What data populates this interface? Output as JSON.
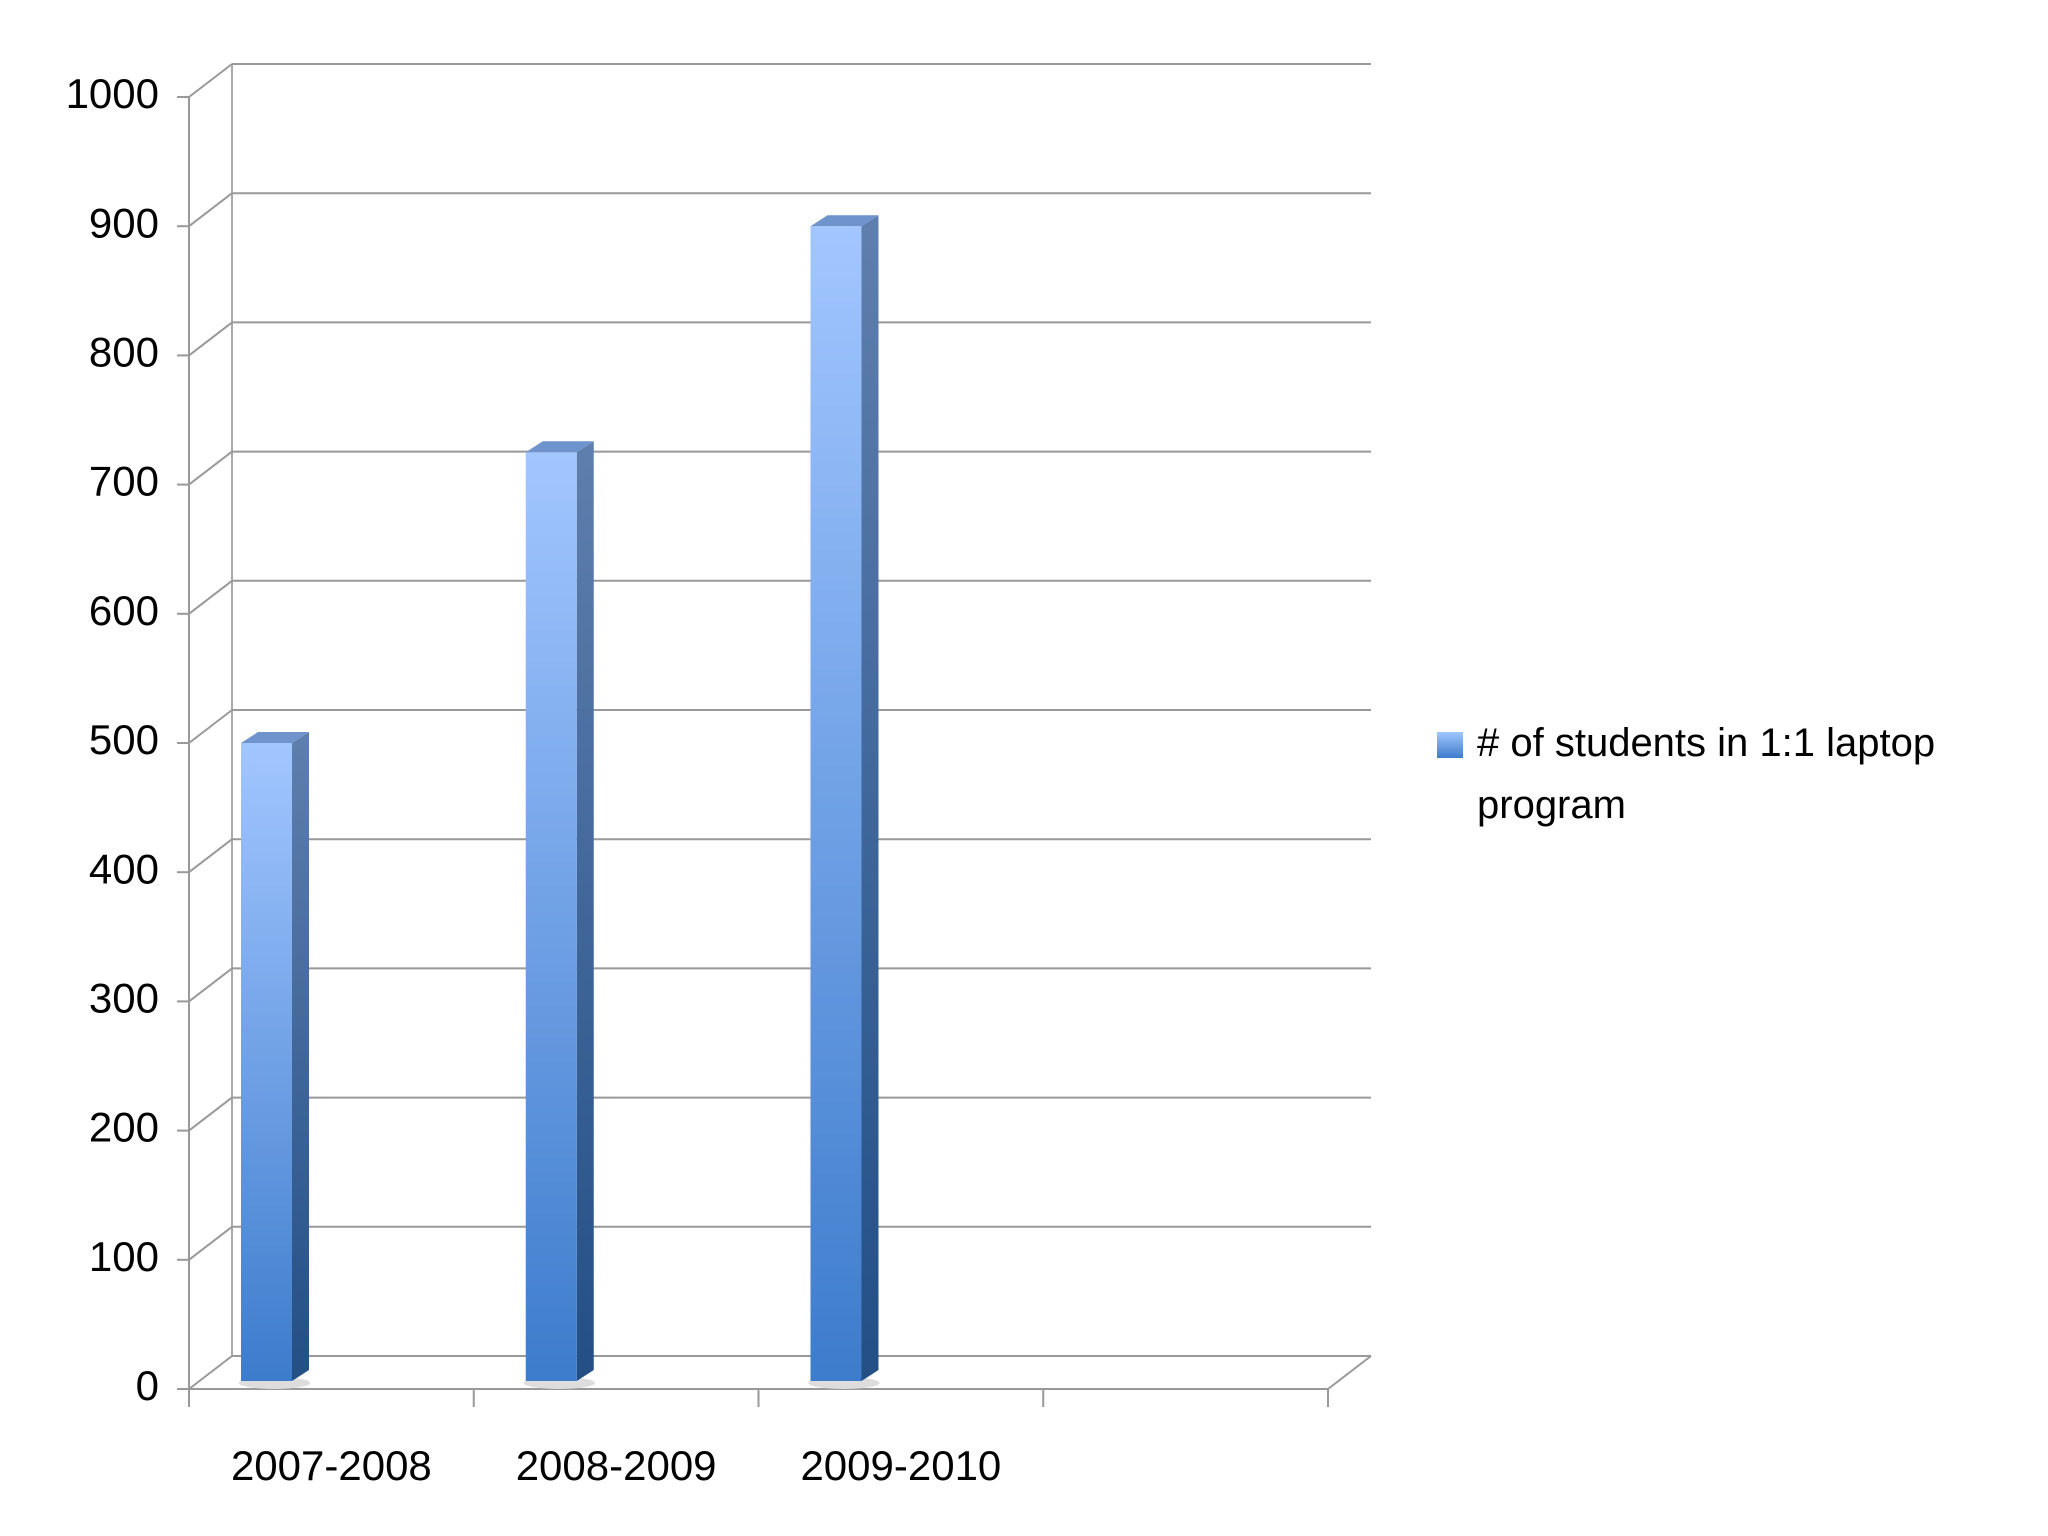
{
  "chart_data": {
    "type": "bar3d",
    "categories": [
      "2007-2008",
      "2008-2009",
      "2009-2010",
      null
    ],
    "series": [
      {
        "name": "# of students in 1:1 laptop program",
        "color": "#4a86d6",
        "values": [
          500,
          725,
          900,
          null
        ]
      }
    ],
    "ylim": [
      0,
      1000
    ],
    "yticks": [
      0,
      100,
      200,
      300,
      400,
      500,
      600,
      700,
      800,
      900,
      1000
    ],
    "grid": true,
    "legend": "right"
  }
}
